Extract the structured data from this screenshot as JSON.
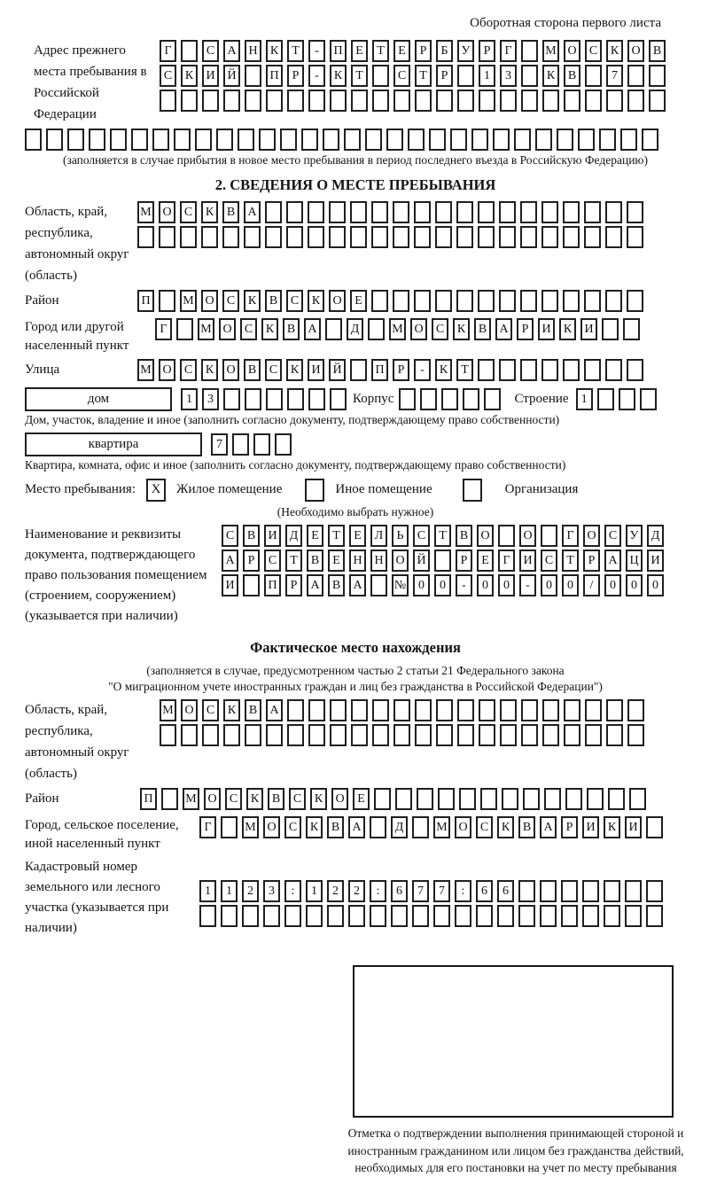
{
  "page": {
    "top_note": "Оборотная сторона первого листа"
  },
  "prev_address": {
    "label": "Адрес прежнего места пребывания в Российской Федерации",
    "row1": {
      "len": 24,
      "text": "Г САНКТ-ПЕТЕРБУРГ МОСКОВ"
    },
    "row2": {
      "len": 24,
      "text": "СКИЙ ПР-КТ СТР 13 КВ 7"
    },
    "row3": {
      "len": 24,
      "text": ""
    },
    "row4": {
      "len": 30,
      "text": ""
    },
    "note": "(заполняется в случае прибытия в новое место пребывания в период последнего въезда в Российскую Федерацию)"
  },
  "section2": {
    "title": "2. СВЕДЕНИЯ О МЕСТЕ ПРЕБЫВАНИЯ",
    "region_label": "Область, край, республика, автономный округ (область)",
    "region_row1": {
      "len": 24,
      "text": "МОСКВА"
    },
    "region_row2": {
      "len": 24,
      "text": ""
    },
    "district_label": "Район",
    "district_row": {
      "len": 24,
      "text": "П МОСКВСКОЕ"
    },
    "city_label": "Город или другой населенный пункт",
    "city_row": {
      "len": 23,
      "text": "Г МОСКВА Д МОСКВАРИКИ"
    },
    "street_label": "Улица",
    "street_row": {
      "len": 24,
      "text": "МОСКОВСКИЙ ПР-КТ"
    },
    "house_box_label": "дом",
    "house_cells": {
      "len": 8,
      "text": "13"
    },
    "korpus_label": "Корпус",
    "korpus_cells": {
      "len": 5,
      "text": ""
    },
    "stroenie_label": "Строение",
    "stroenie_cells": {
      "len": 4,
      "text": "1"
    },
    "house_note": "Дом, участок, владение и иное (заполнить согласно документу, подтверждающему право собственности)",
    "apartment_box_label": "квартира",
    "apartment_cells": {
      "len": 4,
      "text": "7"
    },
    "apartment_note": "Квартира, комната, офис и иное (заполнить согласно документу, подтверждающему право собственности)",
    "stay_label": "Место пребывания:",
    "stay_options": [
      {
        "label": "Жилое помещение",
        "checked": true
      },
      {
        "label": "Иное помещение",
        "checked": false
      },
      {
        "label": "Организация",
        "checked": false
      }
    ],
    "stay_note": "(Необходимо выбрать нужное)",
    "doc_label": "Наименование и реквизиты документа, подтверждающего право пользования помещением (строением, сооружением) (указывается при наличии)",
    "doc_row1": {
      "len": 21,
      "text": "СВИДЕТЕЛЬСТВО О ГОСУД"
    },
    "doc_row2": {
      "len": 21,
      "text": "АРСТВЕННОЙ РЕГИСТРАЦИ"
    },
    "doc_row3": {
      "len": 21,
      "text": "И ПРАВА №00-00-00/000"
    }
  },
  "fact": {
    "title": "Фактическое место нахождения",
    "note_line1": "(заполняется в случае, предусмотренном частью 2 статьи 21 Федерального закона",
    "note_line2": "\"О миграционном учете иностранных граждан и лиц без гражданства в Российской Федерации\")",
    "region_label": "Область, край, республика, автономный округ (область)",
    "region_row1": {
      "len": 23,
      "text": "МОСКВА"
    },
    "region_row2": {
      "len": 23,
      "text": ""
    },
    "district_label": "Район",
    "district_row": {
      "len": 24,
      "text": "П МОСКВСКОЕ"
    },
    "city_label": "Город, сельское поселение, иной населенный пункт",
    "city_row": {
      "len": 22,
      "text": "Г МОСКВА Д МОСКВАРИКИ"
    },
    "cadastral_label": "Кадастровый номер земельного или лесного участка (указывается при наличии)",
    "cadastral_row1": {
      "len": 22,
      "text": "1123:122:677:66"
    },
    "cadastral_row2": {
      "len": 22,
      "text": ""
    },
    "stamp_note": "Отметка о подтверждении выполнения принимающей стороной и иностранным гражданином или лицом без гражданства действий, необходимых для его постановки на учет по месту пребывания"
  }
}
